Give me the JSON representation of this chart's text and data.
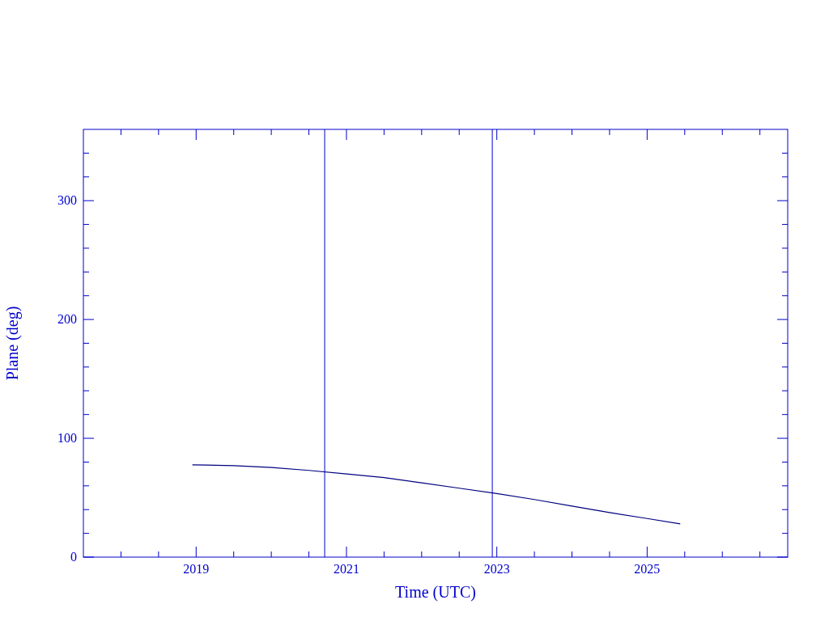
{
  "chart_data": {
    "type": "line",
    "xlabel": "Time (UTC)",
    "ylabel": "Plane (deg)",
    "xlim": [
      2017.5,
      2026.87
    ],
    "ylim": [
      0,
      360
    ],
    "xticks": [
      {
        "value": 2018,
        "label": null
      },
      {
        "value": 2018.5,
        "label": null
      },
      2019,
      {
        "value": 2019.5,
        "label": null
      },
      {
        "value": 2020,
        "label": null
      },
      {
        "value": 2020.5,
        "label": null
      },
      2021,
      {
        "value": 2021.5,
        "label": null
      },
      {
        "value": 2022,
        "label": null
      },
      {
        "value": 2022.5,
        "label": null
      },
      2023,
      {
        "value": 2023.5,
        "label": null
      },
      {
        "value": 2024,
        "label": null
      },
      {
        "value": 2024.5,
        "label": null
      },
      2025,
      {
        "value": 2025.5,
        "label": null
      },
      {
        "value": 2026,
        "label": null
      },
      {
        "value": 2026.5,
        "label": null
      }
    ],
    "yticks": [
      0,
      {
        "value": 20,
        "label": null
      },
      {
        "value": 40,
        "label": null
      },
      {
        "value": 60,
        "label": null
      },
      {
        "value": 80,
        "label": null
      },
      100,
      {
        "value": 120,
        "label": null
      },
      {
        "value": 140,
        "label": null
      },
      {
        "value": 160,
        "label": null
      },
      {
        "value": 180,
        "label": null
      },
      200,
      {
        "value": 220,
        "label": null
      },
      {
        "value": 240,
        "label": null
      },
      {
        "value": 260,
        "label": null
      },
      {
        "value": 280,
        "label": null
      },
      300,
      {
        "value": 320,
        "label": null
      },
      {
        "value": 340,
        "label": null
      }
    ],
    "x": [
      2018.95,
      2019.5,
      2020,
      2020.5,
      2021,
      2021.5,
      2022,
      2022.5,
      2023,
      2023.5,
      2024,
      2024.5,
      2025,
      2025.44
    ],
    "series": [
      {
        "color": "#000080",
        "values": [
          77.7,
          77,
          75.5,
          73,
          70,
          67,
          62.5,
          58,
          53.5,
          48.5,
          43,
          37.5,
          32.5,
          28
        ]
      }
    ],
    "ref_lines": [
      {
        "axis": "x",
        "value": 2020.71,
        "color": "#0000cc"
      },
      {
        "axis": "x",
        "value": 2022.94,
        "color": "#0000cc"
      }
    ],
    "grid": false
  }
}
